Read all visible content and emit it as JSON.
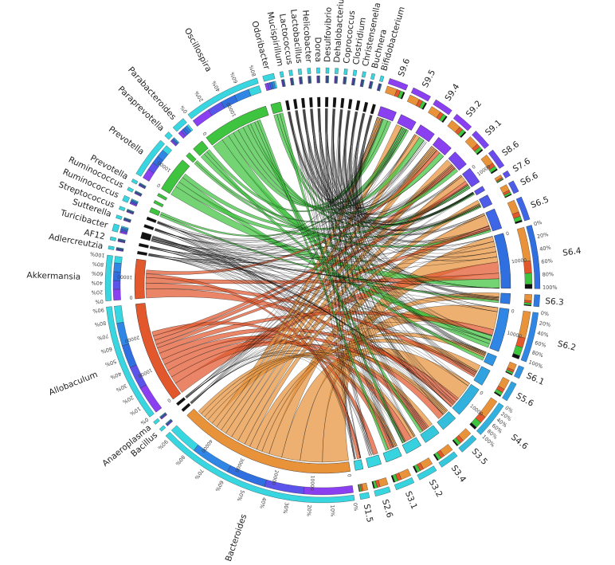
{
  "figure": {
    "type": "circos-chord-diagram",
    "colors": {
      "genus_orange": "#e8923a",
      "genus_red": "#e2572c",
      "genus_green": "#3ec43e",
      "genus_black": "#111111",
      "sample_blue": "#2f6fe0",
      "sample_purple": "#8a3ff0",
      "sample_cyan": "#38d6e0"
    },
    "genera": [
      {
        "label": "Bacteroides",
        "size": 45000,
        "color": "#e8923a",
        "ticks": [
          "0%",
          "10%",
          "20%",
          "30%",
          "40%",
          "50%",
          "60%",
          "70%",
          "80%",
          "90%"
        ],
        "sticks": [
          "0",
          "10000",
          "20000",
          "30000",
          "40000"
        ]
      },
      {
        "label": "Bacillus",
        "size": 700,
        "color": "#111111"
      },
      {
        "label": "Anaeroplasma",
        "size": 700,
        "color": "#111111"
      },
      {
        "label": "Allobaculum",
        "size": 26000,
        "color": "#e2572c",
        "ticks": [
          "0%",
          "10%",
          "20%",
          "30%",
          "40%",
          "50%",
          "60%",
          "70%",
          "80%",
          "90%"
        ],
        "sticks": [
          "0",
          "10000",
          "20000"
        ]
      },
      {
        "label": "Akkermansia",
        "size": 10000,
        "color": "#e2572c",
        "ticks": [
          "0%",
          "20%",
          "40%",
          "60%",
          "80%",
          "100%"
        ],
        "sticks": [
          "0",
          "10000"
        ]
      },
      {
        "label": "Adlercreutzia",
        "size": 700,
        "color": "#111111"
      },
      {
        "label": "AF12",
        "size": 700,
        "color": "#111111"
      },
      {
        "label": "Turicibacter",
        "size": 1600,
        "color": "#111111"
      },
      {
        "label": "Sutterella",
        "size": 700,
        "color": "#111111"
      },
      {
        "label": "Streptococcus",
        "size": 700,
        "color": "#111111"
      },
      {
        "label": "Ruminococcus",
        "size": 1200,
        "color": "#3ec43e"
      },
      {
        "label": "Ruminococcus",
        "size": 700,
        "color": "#3ec43e"
      },
      {
        "label": "Prevotella",
        "size": 700,
        "color": "#3ec43e"
      },
      {
        "label": "Prevotella",
        "size": 9000,
        "color": "#3ec43e",
        "sticks": [
          "0",
          "10000"
        ]
      },
      {
        "label": "Paraprevotella",
        "size": 1200,
        "color": "#3ec43e"
      },
      {
        "label": "Parabacteroides",
        "size": 3000,
        "color": "#3ec43e"
      },
      {
        "label": "Oscillospira",
        "size": 17000,
        "color": "#3ec43e",
        "ticks": [
          "0%",
          "20%",
          "40%",
          "60%",
          "80%"
        ],
        "sticks": [
          "0",
          "10000"
        ]
      },
      {
        "label": "Odoribacter",
        "size": 2500,
        "color": "#3ec43e"
      },
      {
        "label": "Mucispirillum",
        "size": 700,
        "color": "#111111"
      },
      {
        "label": "Lactococcus",
        "size": 700,
        "color": "#111111"
      },
      {
        "label": "Lactobacillus",
        "size": 700,
        "color": "#111111"
      },
      {
        "label": "Helicobacter",
        "size": 700,
        "color": "#111111"
      },
      {
        "label": "Dorea",
        "size": 700,
        "color": "#111111"
      },
      {
        "label": "Desulfovibrio",
        "size": 700,
        "color": "#111111"
      },
      {
        "label": "Dehalobacterium",
        "size": 700,
        "color": "#111111"
      },
      {
        "label": "Coprococcus",
        "size": 700,
        "color": "#111111"
      },
      {
        "label": "Clostridium",
        "size": 700,
        "color": "#111111"
      },
      {
        "label": "Christensenella",
        "size": 700,
        "color": "#111111"
      },
      {
        "label": "Buchnera",
        "size": 700,
        "color": "#111111"
      },
      {
        "label": "Bifidobacterium",
        "size": 700,
        "color": "#111111"
      }
    ],
    "samples": [
      {
        "label": "S9.6",
        "size": 4200,
        "color": "#8a3ff0"
      },
      {
        "label": "S9.5",
        "size": 4200,
        "color": "#8a3ff0"
      },
      {
        "label": "S9.4",
        "size": 4200,
        "color": "#8a3ff0"
      },
      {
        "label": "S9.2",
        "size": 4200,
        "color": "#8a3ff0"
      },
      {
        "label": "S9.1",
        "size": 4200,
        "color": "#7a45ee"
      },
      {
        "label": "S8.6",
        "size": 4200,
        "color": "#6a4cec",
        "sticks": [
          "0",
          "10000"
        ]
      },
      {
        "label": "S7.6",
        "size": 1200,
        "color": "#5a54ea"
      },
      {
        "label": "S6.6",
        "size": 2600,
        "color": "#4d5de8"
      },
      {
        "label": "S6.5",
        "size": 5200,
        "color": "#3f66e6"
      },
      {
        "label": "S6.4",
        "size": 14000,
        "color": "#2f6fe0",
        "ticks": [
          "0%",
          "20%",
          "40%",
          "60%",
          "80%",
          "100%"
        ],
        "sticks": [
          "0",
          "10000"
        ]
      },
      {
        "label": "S6.3",
        "size": 2600,
        "color": "#2f7ae2"
      },
      {
        "label": "S6.2",
        "size": 11000,
        "color": "#2f86e4",
        "ticks": [
          "0%",
          "20%",
          "40%",
          "60%",
          "80%",
          "100%"
        ],
        "sticks": [
          "0",
          "10000"
        ]
      },
      {
        "label": "S6.1",
        "size": 2600,
        "color": "#3094e2"
      },
      {
        "label": "S5.6",
        "size": 4200,
        "color": "#31a2e0"
      },
      {
        "label": "S4.6",
        "size": 8000,
        "color": "#32b0de",
        "ticks": [
          "0%",
          "20%",
          "40%",
          "60%",
          "80%",
          "100%"
        ],
        "sticks": [
          "0",
          "10000"
        ]
      },
      {
        "label": "S3.5",
        "size": 4200,
        "color": "#34bedc"
      },
      {
        "label": "S3.4",
        "size": 4200,
        "color": "#35c8dc"
      },
      {
        "label": "S3.2",
        "size": 4200,
        "color": "#36d0de"
      },
      {
        "label": "S3.1",
        "size": 4200,
        "color": "#37d4e0"
      },
      {
        "label": "S2.6",
        "size": 3400,
        "color": "#38d6e0"
      },
      {
        "label": "S1.5",
        "size": 2000,
        "color": "#38d6e0"
      }
    ],
    "flows": [
      {
        "genus": 0,
        "sample": 9,
        "value": 7000
      },
      {
        "genus": 0,
        "sample": 11,
        "value": 6000
      },
      {
        "genus": 0,
        "sample": 14,
        "value": 5000
      },
      {
        "genus": 0,
        "sample": 8,
        "value": 3500
      },
      {
        "genus": 0,
        "sample": 10,
        "value": 2000
      },
      {
        "genus": 0,
        "sample": 12,
        "value": 1500
      },
      {
        "genus": 0,
        "sample": 13,
        "value": 2000
      },
      {
        "genus": 0,
        "sample": 7,
        "value": 1500
      },
      {
        "genus": 0,
        "sample": 5,
        "value": 2000
      },
      {
        "genus": 0,
        "sample": 4,
        "value": 2000
      },
      {
        "genus": 0,
        "sample": 3,
        "value": 1800
      },
      {
        "genus": 0,
        "sample": 2,
        "value": 1500
      },
      {
        "genus": 0,
        "sample": 1,
        "value": 1500
      },
      {
        "genus": 0,
        "sample": 0,
        "value": 1500
      },
      {
        "genus": 0,
        "sample": 15,
        "value": 1500
      },
      {
        "genus": 0,
        "sample": 16,
        "value": 1200
      },
      {
        "genus": 0,
        "sample": 17,
        "value": 1200
      },
      {
        "genus": 0,
        "sample": 18,
        "value": 1000
      },
      {
        "genus": 3,
        "sample": 9,
        "value": 3000
      },
      {
        "genus": 3,
        "sample": 16,
        "value": 2000
      },
      {
        "genus": 3,
        "sample": 17,
        "value": 2000
      },
      {
        "genus": 3,
        "sample": 15,
        "value": 1800
      },
      {
        "genus": 3,
        "sample": 18,
        "value": 1500
      },
      {
        "genus": 3,
        "sample": 14,
        "value": 1800
      },
      {
        "genus": 3,
        "sample": 11,
        "value": 1500
      },
      {
        "genus": 3,
        "sample": 8,
        "value": 1000
      },
      {
        "genus": 3,
        "sample": 5,
        "value": 1200
      },
      {
        "genus": 3,
        "sample": 4,
        "value": 1200
      },
      {
        "genus": 3,
        "sample": 19,
        "value": 1200
      },
      {
        "genus": 4,
        "sample": 14,
        "value": 2500
      },
      {
        "genus": 4,
        "sample": 13,
        "value": 1500
      },
      {
        "genus": 4,
        "sample": 9,
        "value": 1500
      },
      {
        "genus": 4,
        "sample": 20,
        "value": 1000
      },
      {
        "genus": 4,
        "sample": 3,
        "value": 1000
      },
      {
        "genus": 13,
        "sample": 9,
        "value": 2500
      },
      {
        "genus": 13,
        "sample": 5,
        "value": 1500
      },
      {
        "genus": 13,
        "sample": 11,
        "value": 1500
      },
      {
        "genus": 13,
        "sample": 4,
        "value": 1200
      },
      {
        "genus": 16,
        "sample": 9,
        "value": 3000
      },
      {
        "genus": 16,
        "sample": 11,
        "value": 2000
      },
      {
        "genus": 16,
        "sample": 0,
        "value": 1500
      },
      {
        "genus": 16,
        "sample": 1,
        "value": 1500
      },
      {
        "genus": 16,
        "sample": 2,
        "value": 1500
      },
      {
        "genus": 16,
        "sample": 3,
        "value": 1400
      },
      {
        "genus": 16,
        "sample": 6,
        "value": 800
      },
      {
        "genus": 16,
        "sample": 14,
        "value": 1200
      },
      {
        "genus": 16,
        "sample": 16,
        "value": 800
      },
      {
        "genus": 16,
        "sample": 18,
        "value": 800
      },
      {
        "genus": 15,
        "sample": 8,
        "value": 1200
      },
      {
        "genus": 15,
        "sample": 12,
        "value": 900
      },
      {
        "genus": 15,
        "sample": 0,
        "value": 900
      },
      {
        "genus": 17,
        "sample": 9,
        "value": 900
      },
      {
        "genus": 17,
        "sample": 5,
        "value": 800
      },
      {
        "genus": 17,
        "sample": 17,
        "value": 800
      },
      {
        "genus": 10,
        "sample": 10,
        "value": 600
      },
      {
        "genus": 10,
        "sample": 1,
        "value": 600
      },
      {
        "genus": 14,
        "sample": 7,
        "value": 600
      },
      {
        "genus": 14,
        "sample": 3,
        "value": 600
      },
      {
        "genus": 7,
        "sample": 9,
        "value": 600
      },
      {
        "genus": 7,
        "sample": 14,
        "value": 600
      }
    ]
  }
}
